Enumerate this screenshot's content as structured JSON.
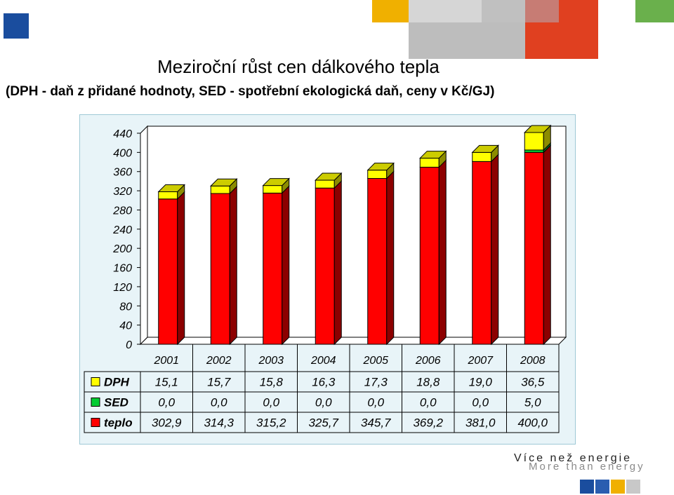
{
  "header": {
    "title": "Meziroční růst cen dálkového tepla",
    "subtitle": "(DPH - daň z přidané hodnoty, SED - spotřební ekologická daň, ceny v Kč/GJ)"
  },
  "footer": {
    "tagline_cz": "Více než energie",
    "tagline_en": "More than energy"
  },
  "colors": {
    "dph": "#ffff00",
    "sed": "#00cc33",
    "teplo": "#ff0000",
    "panel_bg": "#e8f4f8",
    "brand_blue": "#1a4d9e",
    "brand_orange": "#f0a000",
    "brand_red": "#e04020",
    "brand_green": "#6ab04c",
    "brand_gray": "#c8c8c8"
  },
  "chart_data": {
    "type": "bar",
    "stacked": true,
    "categories": [
      "2001",
      "2002",
      "2003",
      "2004",
      "2005",
      "2006",
      "2007",
      "2008"
    ],
    "series": [
      {
        "name": "teplo",
        "values": [
          302.9,
          314.3,
          315.2,
          325.7,
          345.7,
          369.2,
          381.0,
          400.0
        ]
      },
      {
        "name": "SED",
        "values": [
          0.0,
          0.0,
          0.0,
          0.0,
          0.0,
          0.0,
          0.0,
          5.0
        ]
      },
      {
        "name": "DPH",
        "values": [
          15.1,
          15.7,
          15.8,
          16.3,
          17.3,
          18.8,
          19.0,
          36.5
        ]
      }
    ],
    "data_table": {
      "rows": [
        {
          "name": "DPH",
          "values": [
            "15,1",
            "15,7",
            "15,8",
            "16,3",
            "17,3",
            "18,8",
            "19,0",
            "36,5"
          ]
        },
        {
          "name": "SED",
          "values": [
            "0,0",
            "0,0",
            "0,0",
            "0,0",
            "0,0",
            "0,0",
            "0,0",
            "5,0"
          ]
        },
        {
          "name": "teplo",
          "values": [
            "302,9",
            "314,3",
            "315,2",
            "325,7",
            "345,7",
            "369,2",
            "381,0",
            "400,0"
          ]
        }
      ]
    },
    "yticks": [
      "0",
      "40",
      "80",
      "120",
      "160",
      "200",
      "240",
      "280",
      "320",
      "360",
      "400",
      "440"
    ],
    "ylim": [
      0,
      440
    ],
    "grid": false,
    "legend": "data table (left of rows)"
  }
}
